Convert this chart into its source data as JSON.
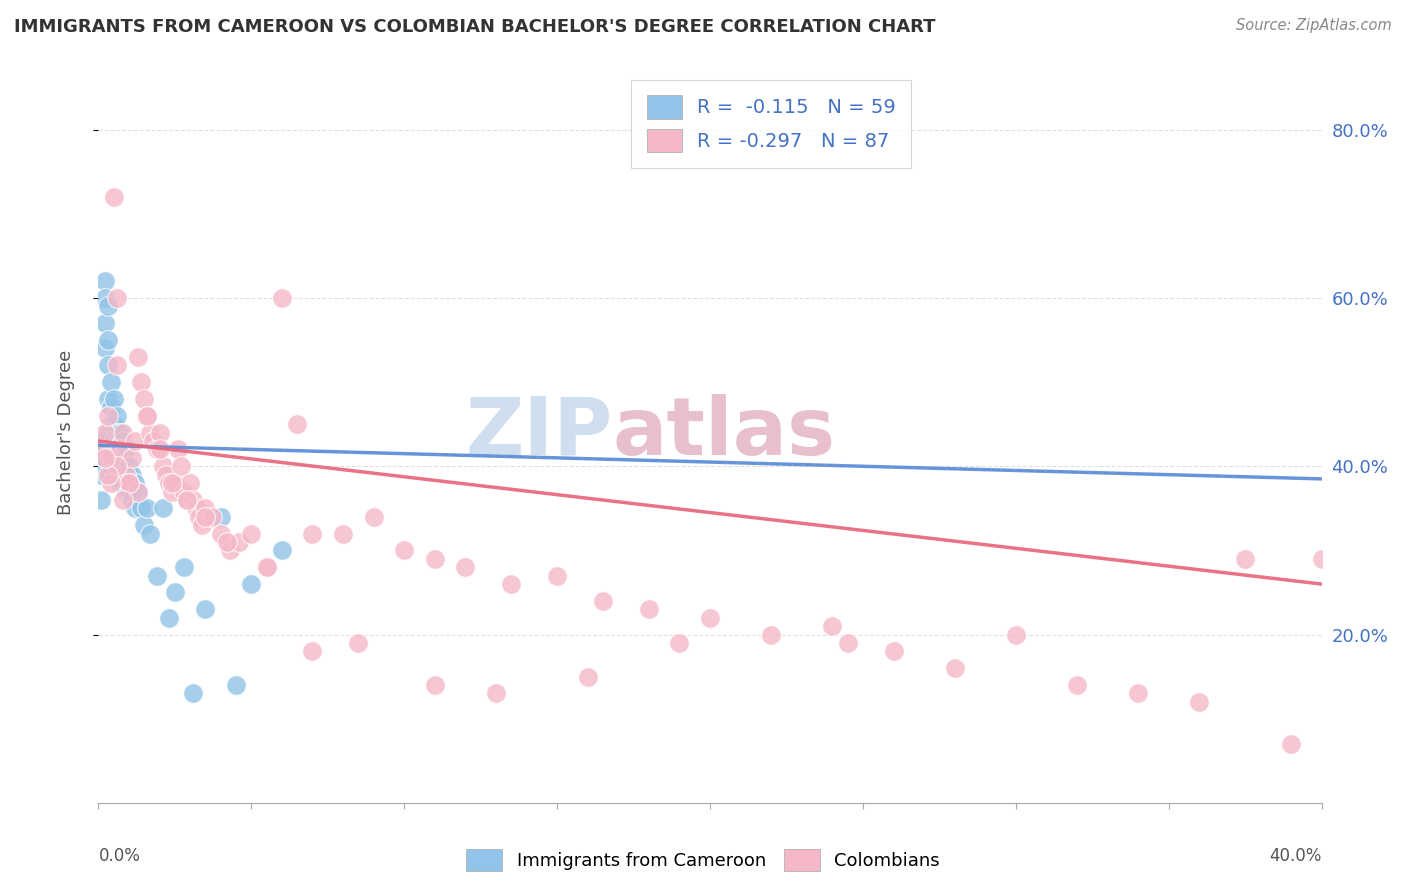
{
  "title": "IMMIGRANTS FROM CAMEROON VS COLOMBIAN BACHELOR'S DEGREE CORRELATION CHART",
  "source": "Source: ZipAtlas.com",
  "ylabel": "Bachelor's Degree",
  "legend_label1": "Immigrants from Cameroon",
  "legend_label2": "Colombians",
  "r1": "-0.115",
  "n1": "59",
  "r2": "-0.297",
  "n2": "87",
  "color_blue": "#91c4e8",
  "color_pink": "#f5b8c8",
  "color_blue_trend": "#5b8dd9",
  "color_pink_trend": "#e8637a",
  "color_blue_text": "#4472c4",
  "watermark_color": "#d0dff0",
  "watermark_color2": "#e8c0cc",
  "background_color": "#ffffff",
  "grid_color": "#dddddd",
  "blue_scatter_x": [
    0.001,
    0.001,
    0.001,
    0.001,
    0.002,
    0.002,
    0.002,
    0.002,
    0.002,
    0.003,
    0.003,
    0.003,
    0.003,
    0.003,
    0.004,
    0.004,
    0.004,
    0.004,
    0.004,
    0.005,
    0.005,
    0.005,
    0.005,
    0.006,
    0.006,
    0.006,
    0.006,
    0.007,
    0.007,
    0.007,
    0.007,
    0.008,
    0.008,
    0.008,
    0.009,
    0.009,
    0.009,
    0.01,
    0.01,
    0.011,
    0.011,
    0.012,
    0.012,
    0.013,
    0.014,
    0.015,
    0.016,
    0.017,
    0.019,
    0.021,
    0.023,
    0.025,
    0.028,
    0.031,
    0.035,
    0.04,
    0.045,
    0.05,
    0.06
  ],
  "blue_scatter_y": [
    0.43,
    0.41,
    0.39,
    0.36,
    0.62,
    0.6,
    0.57,
    0.54,
    0.42,
    0.59,
    0.55,
    0.52,
    0.48,
    0.44,
    0.5,
    0.47,
    0.45,
    0.42,
    0.4,
    0.48,
    0.45,
    0.43,
    0.41,
    0.46,
    0.44,
    0.42,
    0.4,
    0.44,
    0.42,
    0.4,
    0.38,
    0.43,
    0.41,
    0.38,
    0.42,
    0.4,
    0.37,
    0.4,
    0.37,
    0.39,
    0.36,
    0.38,
    0.35,
    0.37,
    0.35,
    0.33,
    0.35,
    0.32,
    0.27,
    0.35,
    0.22,
    0.25,
    0.28,
    0.13,
    0.23,
    0.34,
    0.14,
    0.26,
    0.3
  ],
  "pink_scatter_x": [
    0.001,
    0.002,
    0.003,
    0.004,
    0.005,
    0.006,
    0.006,
    0.007,
    0.008,
    0.009,
    0.01,
    0.011,
    0.012,
    0.013,
    0.014,
    0.015,
    0.016,
    0.017,
    0.018,
    0.019,
    0.02,
    0.021,
    0.022,
    0.023,
    0.024,
    0.025,
    0.026,
    0.027,
    0.028,
    0.029,
    0.03,
    0.031,
    0.032,
    0.033,
    0.034,
    0.035,
    0.037,
    0.04,
    0.043,
    0.046,
    0.05,
    0.055,
    0.06,
    0.065,
    0.07,
    0.08,
    0.09,
    0.1,
    0.11,
    0.12,
    0.135,
    0.15,
    0.165,
    0.18,
    0.2,
    0.22,
    0.24,
    0.26,
    0.28,
    0.3,
    0.32,
    0.34,
    0.36,
    0.375,
    0.39,
    0.4,
    0.245,
    0.19,
    0.16,
    0.13,
    0.11,
    0.085,
    0.07,
    0.055,
    0.042,
    0.035,
    0.029,
    0.024,
    0.02,
    0.016,
    0.013,
    0.01,
    0.008,
    0.006,
    0.004,
    0.003,
    0.002
  ],
  "pink_scatter_y": [
    0.42,
    0.44,
    0.46,
    0.41,
    0.72,
    0.6,
    0.52,
    0.42,
    0.44,
    0.39,
    0.38,
    0.41,
    0.43,
    0.53,
    0.5,
    0.48,
    0.46,
    0.44,
    0.43,
    0.42,
    0.44,
    0.4,
    0.39,
    0.38,
    0.37,
    0.38,
    0.42,
    0.4,
    0.37,
    0.36,
    0.38,
    0.36,
    0.35,
    0.34,
    0.33,
    0.35,
    0.34,
    0.32,
    0.3,
    0.31,
    0.32,
    0.28,
    0.6,
    0.45,
    0.32,
    0.32,
    0.34,
    0.3,
    0.29,
    0.28,
    0.26,
    0.27,
    0.24,
    0.23,
    0.22,
    0.2,
    0.21,
    0.18,
    0.16,
    0.2,
    0.14,
    0.13,
    0.12,
    0.29,
    0.07,
    0.29,
    0.19,
    0.19,
    0.15,
    0.13,
    0.14,
    0.19,
    0.18,
    0.28,
    0.31,
    0.34,
    0.36,
    0.38,
    0.42,
    0.46,
    0.37,
    0.38,
    0.36,
    0.4,
    0.38,
    0.39,
    0.41
  ]
}
